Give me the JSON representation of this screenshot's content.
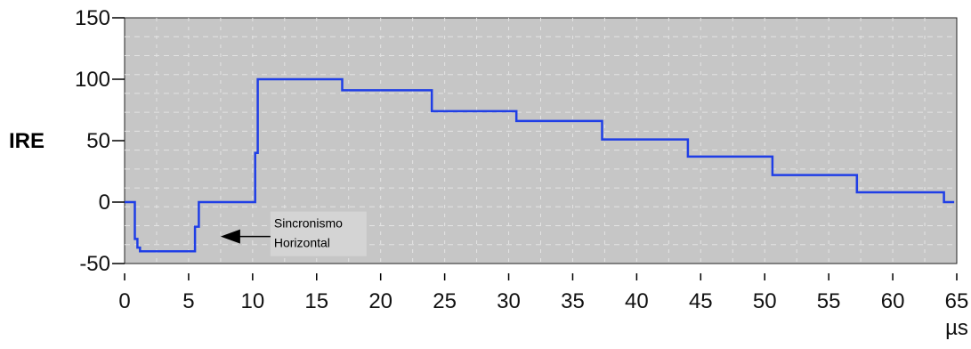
{
  "chart_data": {
    "type": "line",
    "title": "",
    "xlabel": "",
    "ylabel": "IRE",
    "xunit": "µs",
    "xlim": [
      0,
      65
    ],
    "ylim": [
      -50,
      150
    ],
    "xticks": [
      0,
      5,
      10,
      15,
      20,
      25,
      30,
      35,
      40,
      45,
      50,
      55,
      60,
      65
    ],
    "yticks": [
      -50,
      0,
      50,
      100,
      150
    ],
    "grid": true,
    "series": [
      {
        "x": [
          0,
          0.8,
          0.8,
          1.0,
          1.0,
          1.2,
          1.2,
          5.5,
          5.5,
          5.8,
          5.8,
          10.2,
          10.2,
          10.4,
          10.4,
          17.0,
          17.0,
          24.0,
          24.0,
          30.6,
          30.6,
          37.3,
          37.3,
          44.0,
          44.0,
          50.6,
          50.6,
          57.2,
          57.2,
          64.0,
          64.0,
          64.8
        ],
        "y": [
          0,
          0,
          -30,
          -30,
          -37,
          -37,
          -40,
          -40,
          -20,
          -20,
          0,
          0,
          40,
          40,
          100,
          100,
          91,
          91,
          74,
          74,
          66,
          66,
          51,
          51,
          37,
          37,
          22,
          22,
          8,
          8,
          0,
          0
        ]
      }
    ],
    "annotations": [
      {
        "text_line1": "Sincronismo",
        "text_line2": "Horizontal",
        "points_to": [
          7.5,
          -28
        ]
      }
    ]
  },
  "colors": {
    "plot_background": "#c6c6c6",
    "grid": "#e4e4e4",
    "series_line": "#1f3ee6",
    "axis": "#000000",
    "text": "#111111"
  }
}
